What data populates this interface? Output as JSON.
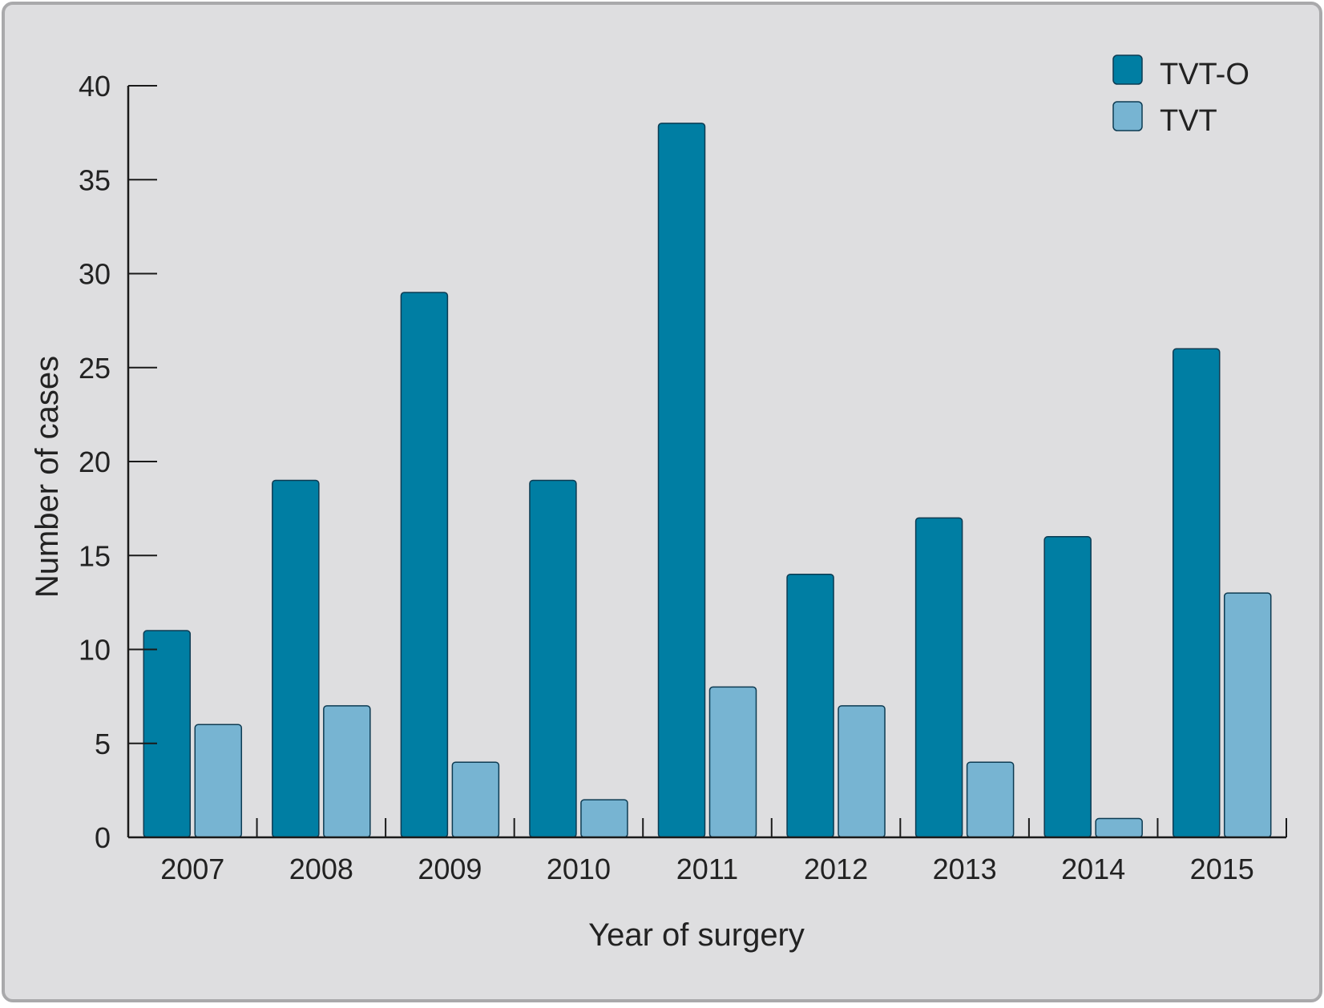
{
  "chart_data": {
    "type": "bar",
    "title": "",
    "xlabel": "Year of surgery",
    "ylabel": "Number of cases",
    "categories": [
      "2007",
      "2008",
      "2009",
      "2010",
      "2011",
      "2012",
      "2013",
      "2014",
      "2015"
    ],
    "series": [
      {
        "name": "TVT-O",
        "values": [
          11,
          19,
          29,
          19,
          38,
          14,
          17,
          16,
          26
        ],
        "color": "#007ea3"
      },
      {
        "name": "TVT",
        "values": [
          6,
          7,
          4,
          2,
          8,
          7,
          4,
          1,
          13
        ],
        "color": "#77b4d2"
      }
    ],
    "ylim": [
      0,
      40
    ],
    "yticks": [
      "0",
      "5",
      "10",
      "15",
      "20",
      "25",
      "30",
      "35",
      "40"
    ],
    "grid": false,
    "legend_position": "top-right",
    "colors": {
      "background": "#dedee0",
      "border": "#a9a9ab",
      "axis": "#1a1a1a",
      "bar_outline": "#0d3b52"
    }
  }
}
